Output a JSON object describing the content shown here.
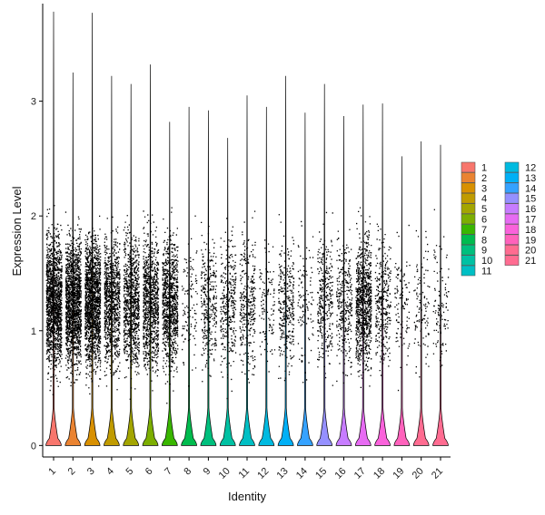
{
  "chart_data": {
    "type": "violin",
    "xlabel": "Identity",
    "ylabel": "Expression Level",
    "ylim": [
      -0.1,
      3.85
    ],
    "yticks": [
      0,
      1,
      2,
      3
    ],
    "grid": false,
    "legend_position": "right",
    "legend_columns": 2,
    "categories": [
      "1",
      "2",
      "3",
      "4",
      "5",
      "6",
      "7",
      "8",
      "9",
      "10",
      "11",
      "12",
      "13",
      "14",
      "15",
      "16",
      "17",
      "18",
      "19",
      "20",
      "21"
    ],
    "colors": [
      "#F8766D",
      "#EA8331",
      "#D89000",
      "#C09B00",
      "#A3A500",
      "#7CAE00",
      "#39B600",
      "#00BB4E",
      "#00BF7D",
      "#00C1A3",
      "#00BFC4",
      "#00BAE0",
      "#00B0F6",
      "#35A2FF",
      "#9590FF",
      "#C77CFF",
      "#E76BF3",
      "#FA62DB",
      "#FF62BC",
      "#FF6C91",
      "#FF6C91"
    ],
    "series": [
      {
        "name": "1",
        "max": 3.78,
        "point_density": "very high"
      },
      {
        "name": "2",
        "max": 3.25,
        "point_density": "very high"
      },
      {
        "name": "3",
        "max": 3.77,
        "point_density": "very high"
      },
      {
        "name": "4",
        "max": 3.22,
        "point_density": "high"
      },
      {
        "name": "5",
        "max": 3.15,
        "point_density": "high"
      },
      {
        "name": "6",
        "max": 3.32,
        "point_density": "high"
      },
      {
        "name": "7",
        "max": 2.82,
        "point_density": "high"
      },
      {
        "name": "8",
        "max": 2.95,
        "point_density": "low"
      },
      {
        "name": "9",
        "max": 2.92,
        "point_density": "medium"
      },
      {
        "name": "10",
        "max": 2.68,
        "point_density": "medium"
      },
      {
        "name": "11",
        "max": 3.05,
        "point_density": "medium"
      },
      {
        "name": "12",
        "max": 2.95,
        "point_density": "low"
      },
      {
        "name": "13",
        "max": 3.22,
        "point_density": "medium"
      },
      {
        "name": "14",
        "max": 2.9,
        "point_density": "low"
      },
      {
        "name": "15",
        "max": 3.15,
        "point_density": "medium"
      },
      {
        "name": "16",
        "max": 2.87,
        "point_density": "medium"
      },
      {
        "name": "17",
        "max": 2.97,
        "point_density": "high"
      },
      {
        "name": "18",
        "max": 2.98,
        "point_density": "medium"
      },
      {
        "name": "19",
        "max": 2.52,
        "point_density": "low"
      },
      {
        "name": "20",
        "max": 2.65,
        "point_density": "low"
      },
      {
        "name": "21",
        "max": 2.62,
        "point_density": "low"
      }
    ]
  }
}
